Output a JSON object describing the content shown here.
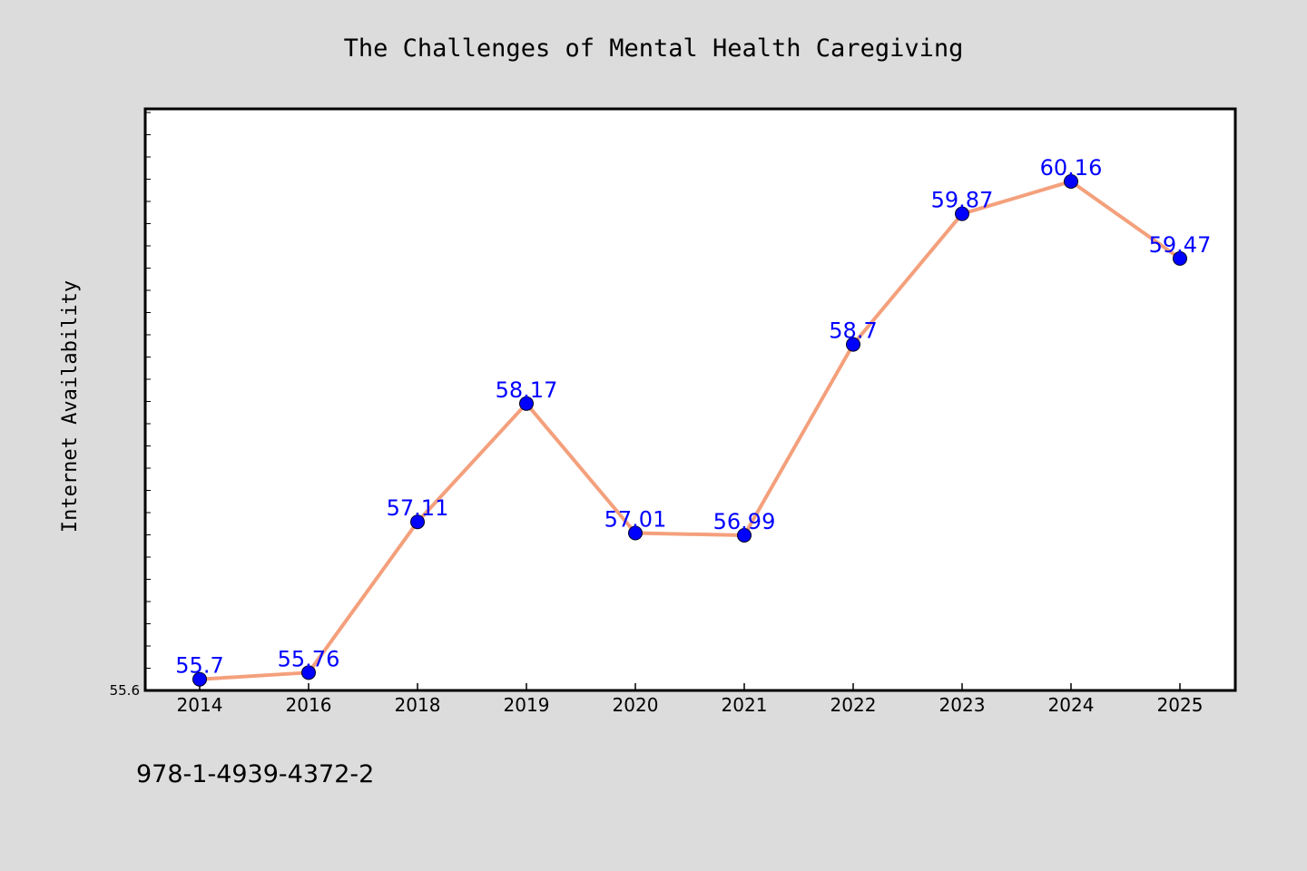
{
  "chart_data": {
    "type": "line",
    "title": "The Challenges of Mental Health Caregiving",
    "ylabel": "Internet Availability",
    "xlabel": "",
    "categories": [
      "2014",
      "2016",
      "2018",
      "2019",
      "2020",
      "2021",
      "2022",
      "2023",
      "2024",
      "2025"
    ],
    "series": [
      {
        "values": [
          55.7,
          55.76,
          57.11,
          58.17,
          57.01,
          56.99,
          58.7,
          59.87,
          60.16,
          59.47
        ]
      }
    ],
    "data_labels": [
      "55.7",
      "55.76",
      "57.11",
      "58.17",
      "57.01",
      "56.99",
      "58.7",
      "59.87",
      "60.16",
      "59.47"
    ],
    "y_tick_labels": [
      "55.6"
    ],
    "ylim": [
      55.6,
      60.81
    ],
    "grid": false,
    "legend": "none",
    "colors": {
      "line": "#f4a07c",
      "marker": "#0000ff",
      "label": "#0000ff",
      "background": "#dcdcdc",
      "plot_bg": "#ffffff"
    }
  },
  "footer": {
    "isbn": "978-1-4939-4372-2"
  }
}
